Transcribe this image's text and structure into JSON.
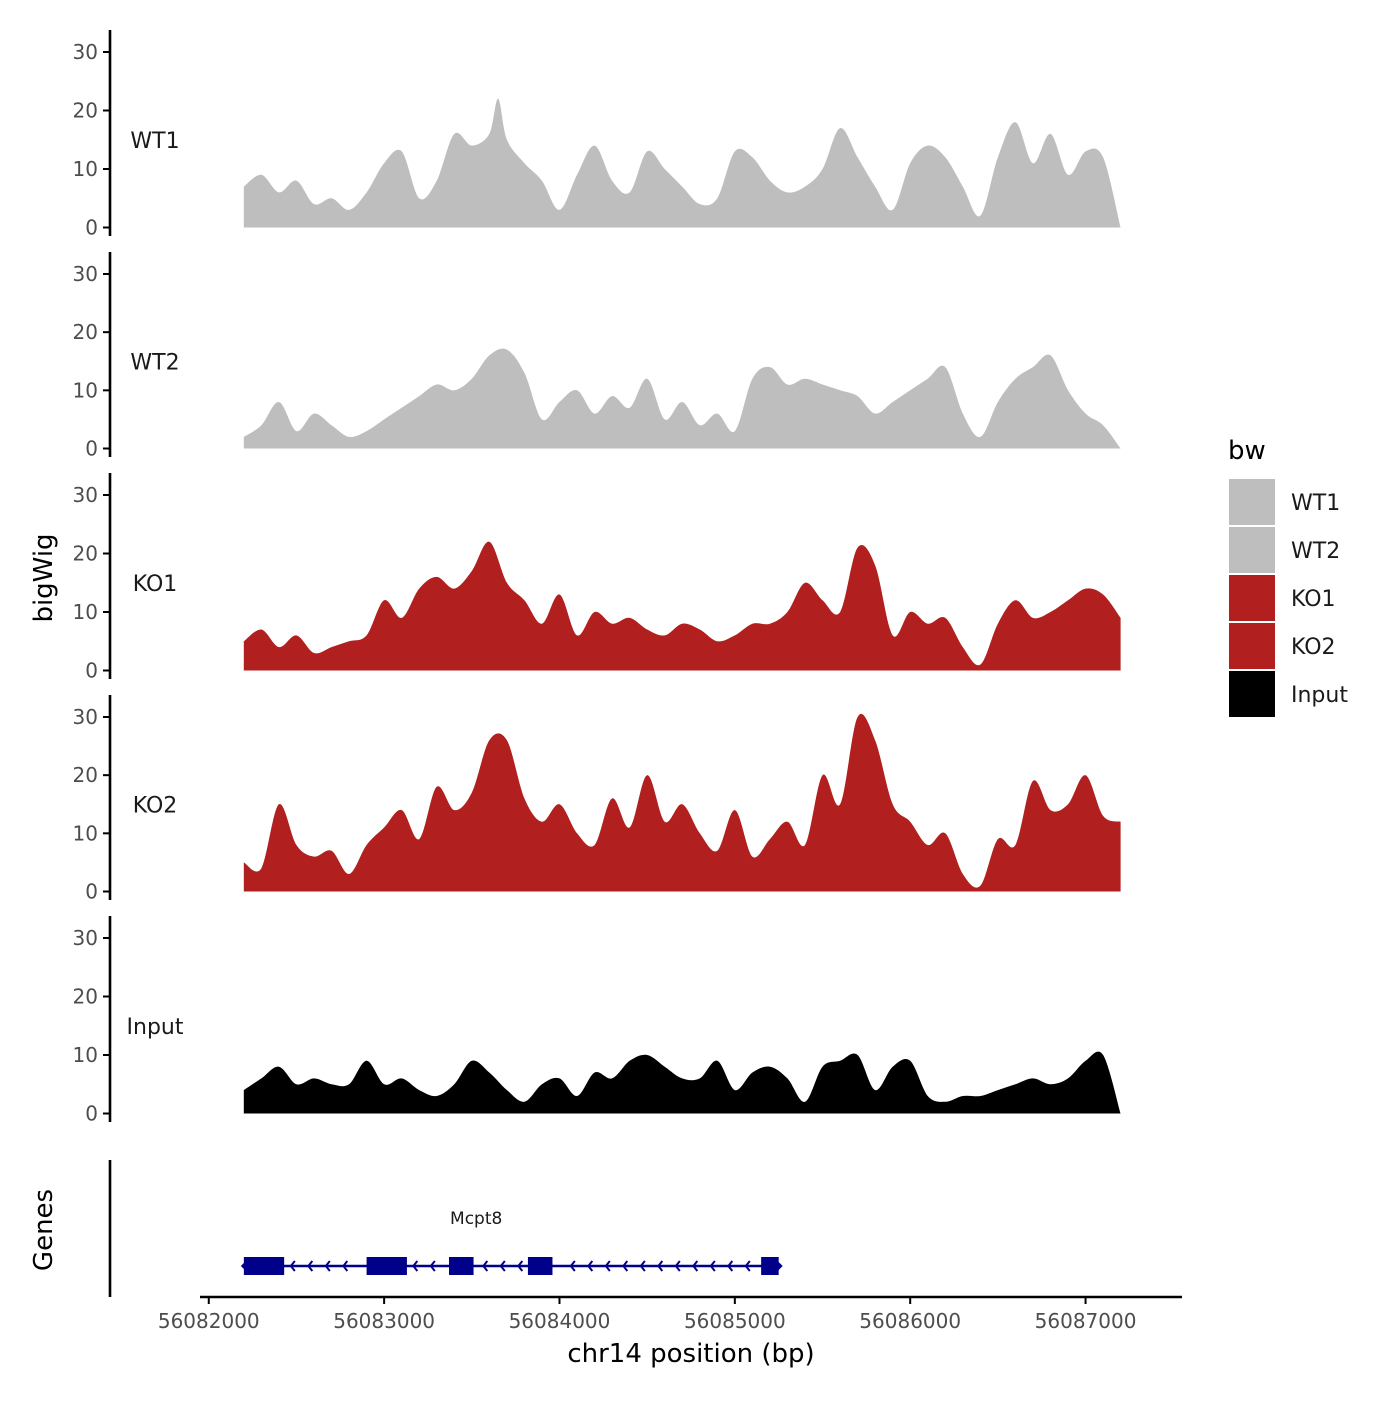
{
  "chart_data": {
    "type": "area",
    "layout": "stacked-tracks",
    "xlabel": "chr14 position (bp)",
    "ylabel": "bigWig",
    "gene_track_label": "Genes",
    "xlim": [
      56081950,
      56087550
    ],
    "x_ticks": [
      56082000,
      56083000,
      56084000,
      56085000,
      56086000,
      56087000
    ],
    "x_tick_labels": [
      "56082000",
      "56083000",
      "56084000",
      "56085000",
      "56086000",
      "56087000"
    ],
    "ylim": [
      0,
      33
    ],
    "y_ticks": [
      0,
      10,
      20,
      30
    ],
    "y_tick_labels": [
      "0",
      "10",
      "20",
      "30"
    ],
    "legend_title": "bw",
    "legend_position": "right",
    "series": [
      {
        "name": "WT1",
        "color": "#bebebe",
        "x": [
          56082200,
          56082300,
          56082400,
          56082500,
          56082600,
          56082700,
          56082800,
          56082900,
          56083000,
          56083100,
          56083200,
          56083300,
          56083400,
          56083500,
          56083600,
          56083650,
          56083700,
          56083800,
          56083900,
          56084000,
          56084100,
          56084200,
          56084300,
          56084400,
          56084500,
          56084600,
          56084700,
          56084800,
          56084900,
          56085000,
          56085100,
          56085200,
          56085300,
          56085400,
          56085500,
          56085600,
          56085700,
          56085800,
          56085900,
          56086000,
          56086100,
          56086200,
          56086300,
          56086400,
          56086500,
          56086600,
          56086700,
          56086800,
          56086900,
          56087000,
          56087100,
          56087200
        ],
        "y": [
          7,
          9,
          6,
          8,
          4,
          5,
          3,
          6,
          11,
          13,
          5,
          8,
          16,
          14,
          16,
          22,
          15,
          11,
          8,
          3,
          9,
          14,
          8,
          6,
          13,
          10,
          7,
          4,
          5,
          13,
          12,
          8,
          6,
          7,
          10,
          17,
          12,
          7,
          3,
          11,
          14,
          12,
          7,
          2,
          12,
          18,
          11,
          16,
          9,
          13,
          12,
          0
        ]
      },
      {
        "name": "WT2",
        "color": "#bebebe",
        "x": [
          56082200,
          56082300,
          56082400,
          56082500,
          56082600,
          56082700,
          56082800,
          56082900,
          56083000,
          56083100,
          56083200,
          56083300,
          56083400,
          56083500,
          56083600,
          56083700,
          56083800,
          56083900,
          56084000,
          56084100,
          56084200,
          56084300,
          56084400,
          56084500,
          56084600,
          56084700,
          56084800,
          56084900,
          56085000,
          56085100,
          56085200,
          56085300,
          56085400,
          56085500,
          56085600,
          56085700,
          56085800,
          56085900,
          56086000,
          56086100,
          56086200,
          56086300,
          56086400,
          56086500,
          56086600,
          56086700,
          56086800,
          56086900,
          56087000,
          56087100,
          56087200
        ],
        "y": [
          2,
          4,
          8,
          3,
          6,
          4,
          2,
          3,
          5,
          7,
          9,
          11,
          10,
          12,
          16,
          17,
          13,
          5,
          8,
          10,
          6,
          9,
          7,
          12,
          5,
          8,
          4,
          6,
          3,
          12,
          14,
          11,
          12,
          11,
          10,
          9,
          6,
          8,
          10,
          12,
          14,
          6,
          2,
          8,
          12,
          14,
          16,
          10,
          6,
          4,
          0
        ]
      },
      {
        "name": "KO1",
        "color": "#b21f1f",
        "x": [
          56082200,
          56082300,
          56082400,
          56082500,
          56082600,
          56082700,
          56082800,
          56082900,
          56083000,
          56083100,
          56083200,
          56083300,
          56083400,
          56083500,
          56083600,
          56083700,
          56083800,
          56083900,
          56084000,
          56084100,
          56084200,
          56084300,
          56084400,
          56084500,
          56084600,
          56084700,
          56084800,
          56084900,
          56085000,
          56085100,
          56085200,
          56085300,
          56085400,
          56085500,
          56085600,
          56085700,
          56085800,
          56085900,
          56086000,
          56086100,
          56086200,
          56086300,
          56086400,
          56086500,
          56086600,
          56086700,
          56086800,
          56086900,
          56087000,
          56087100,
          56087200
        ],
        "y": [
          5,
          7,
          4,
          6,
          3,
          4,
          5,
          6,
          12,
          9,
          14,
          16,
          14,
          17,
          22,
          15,
          12,
          8,
          13,
          6,
          10,
          8,
          9,
          7,
          6,
          8,
          7,
          5,
          6,
          8,
          8,
          10,
          15,
          12,
          10,
          21,
          18,
          6,
          10,
          8,
          9,
          4,
          1,
          8,
          12,
          9,
          10,
          12,
          14,
          13,
          9
        ]
      },
      {
        "name": "KO2",
        "color": "#b21f1f",
        "x": [
          56082200,
          56082300,
          56082400,
          56082500,
          56082600,
          56082700,
          56082800,
          56082900,
          56083000,
          56083100,
          56083200,
          56083300,
          56083400,
          56083500,
          56083600,
          56083700,
          56083800,
          56083900,
          56084000,
          56084100,
          56084200,
          56084300,
          56084400,
          56084500,
          56084600,
          56084700,
          56084800,
          56084900,
          56085000,
          56085100,
          56085200,
          56085300,
          56085400,
          56085500,
          56085600,
          56085700,
          56085800,
          56085900,
          56086000,
          56086100,
          56086200,
          56086300,
          56086400,
          56086500,
          56086600,
          56086700,
          56086800,
          56086900,
          56087000,
          56087100,
          56087200
        ],
        "y": [
          5,
          4,
          15,
          8,
          6,
          7,
          3,
          8,
          11,
          14,
          9,
          18,
          14,
          17,
          26,
          26,
          16,
          12,
          15,
          10,
          8,
          16,
          11,
          20,
          12,
          15,
          10,
          7,
          14,
          6,
          9,
          12,
          8,
          20,
          15,
          30,
          26,
          15,
          12,
          8,
          10,
          3,
          1,
          9,
          8,
          19,
          14,
          15,
          20,
          13,
          12
        ]
      },
      {
        "name": "Input",
        "color": "#000000",
        "x": [
          56082200,
          56082300,
          56082400,
          56082500,
          56082600,
          56082700,
          56082800,
          56082900,
          56083000,
          56083100,
          56083200,
          56083300,
          56083400,
          56083500,
          56083600,
          56083700,
          56083800,
          56083900,
          56084000,
          56084100,
          56084200,
          56084300,
          56084400,
          56084500,
          56084600,
          56084700,
          56084800,
          56084900,
          56085000,
          56085100,
          56085200,
          56085300,
          56085400,
          56085500,
          56085600,
          56085700,
          56085800,
          56085900,
          56086000,
          56086100,
          56086200,
          56086300,
          56086400,
          56086500,
          56086600,
          56086700,
          56086800,
          56086900,
          56087000,
          56087100,
          56087200
        ],
        "y": [
          4,
          6,
          8,
          5,
          6,
          5,
          5,
          9,
          5,
          6,
          4,
          3,
          5,
          9,
          7,
          4,
          2,
          5,
          6,
          3,
          7,
          6,
          9,
          10,
          8,
          6,
          6,
          9,
          4,
          7,
          8,
          6,
          2,
          8,
          9,
          10,
          4,
          8,
          9,
          3,
          2,
          3,
          3,
          4,
          5,
          6,
          5,
          6,
          9,
          10,
          0
        ]
      }
    ],
    "genes": [
      {
        "name": "Mcpt8",
        "strand": "-",
        "start": 56082200,
        "end": 56085250,
        "color": "#00008b",
        "exons": [
          [
            56082200,
            56082430
          ],
          [
            56082900,
            56083130
          ],
          [
            56083370,
            56083510
          ],
          [
            56083820,
            56083960
          ],
          [
            56085150,
            56085250
          ]
        ]
      }
    ]
  }
}
